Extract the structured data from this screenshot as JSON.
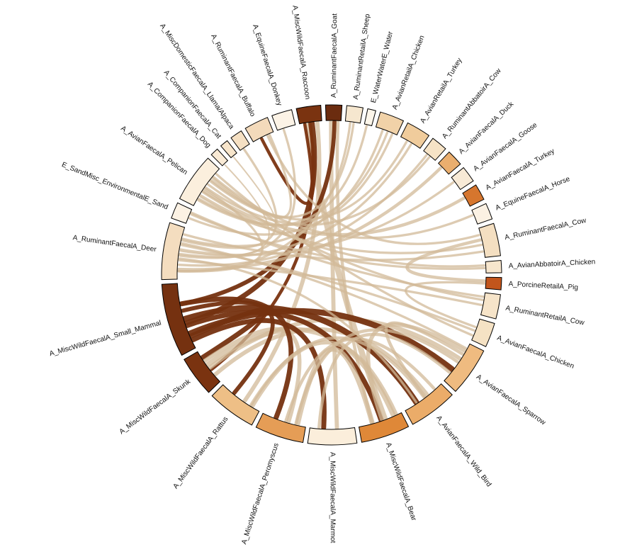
{
  "diagram": {
    "type": "chord",
    "groups": [
      {
        "id": "raccoon",
        "label": "A_MiscWildFaecalA_Raccoon",
        "color": "#7a3310",
        "weight": 3
      },
      {
        "id": "goat",
        "label": "A_RuminantFaecalA_Goat",
        "color": "#6b2c0f",
        "weight": 2
      },
      {
        "id": "sheep",
        "label": "A_RuminantRetailA_Sheep",
        "color": "#f6e7cf",
        "weight": 2
      },
      {
        "id": "water",
        "label": "E_WaterWaterE_Water",
        "color": "#fdf6ea",
        "weight": 1
      },
      {
        "id": "chk",
        "label": "A_AvianRetailA_Chicken",
        "color": "#f1d2a8",
        "weight": 3
      },
      {
        "id": "tky",
        "label": "A_AvianRetailA_Turkey",
        "color": "#f0cc9c",
        "weight": 3
      },
      {
        "id": "cow",
        "label": "A_RuminantAbbatoirA_Cow",
        "color": "#f6e3c6",
        "weight": 2
      },
      {
        "id": "duck",
        "label": "A_AvianFaecalA_Duck",
        "color": "#eaae6e",
        "weight": 2
      },
      {
        "id": "goose",
        "label": "A_AvianFaecalA_Goose",
        "color": "#f8ead6",
        "weight": 2
      },
      {
        "id": "turkeyf",
        "label": "A_AvianFaecalA_Turkey",
        "color": "#d6762e",
        "weight": 2
      },
      {
        "id": "horse",
        "label": "A_EquineFaecalA_Horse",
        "color": "#fbf1e3",
        "weight": 2
      },
      {
        "id": "cowf",
        "label": "A_RuminantFaecalA_Cow",
        "color": "#f4dfc1",
        "weight": 4
      },
      {
        "id": "abch",
        "label": "A_AvianAbbatoirA_Chicken",
        "color": "#f7e6cd",
        "weight": 1.5
      },
      {
        "id": "pig",
        "label": "A_PorcineRetailA_Pig",
        "color": "#c2551c",
        "weight": 1.5
      },
      {
        "id": "cowr",
        "label": "A_RuminantRetailA_Cow",
        "color": "#f6e4c9",
        "weight": 3
      },
      {
        "id": "chkf",
        "label": "A_AvianFaecalA_Chicken",
        "color": "#f5e2c4",
        "weight": 3
      },
      {
        "id": "sparrow",
        "label": "A_AvianFaecalA_Sparrow",
        "color": "#efbb80",
        "weight": 6
      },
      {
        "id": "wildbird",
        "label": "A_AvianFaecalA_Wild_Bird",
        "color": "#ebac69",
        "weight": 6
      },
      {
        "id": "bear",
        "label": "A_MiscWildFaecalA_Bear",
        "color": "#df8838",
        "weight": 6
      },
      {
        "id": "marmot",
        "label": "A_MiscWildFaecalA_Marmot",
        "color": "#fbeedb",
        "weight": 6
      },
      {
        "id": "pero",
        "label": "A_MiscWildFaecalA_Peromyscus",
        "color": "#e59d56",
        "weight": 6
      },
      {
        "id": "rattus",
        "label": "A_MiscWildFaecalA_Rattus",
        "color": "#eebf86",
        "weight": 6
      },
      {
        "id": "skunk",
        "label": "A_MiscWildFaecalA_Skunk",
        "color": "#7a3310",
        "weight": 5
      },
      {
        "id": "smallmam",
        "label": "A_MiscWildFaecalA_Small_Mammal",
        "color": "#753110",
        "weight": 9
      },
      {
        "id": "deer",
        "label": "A_RuminantFaecalA_Deer",
        "color": "#f4ddbf",
        "weight": 7
      },
      {
        "id": "sand",
        "label": "E_SandMisc_EnvironmentalE_Sand",
        "color": "#fcf2e4",
        "weight": 2
      },
      {
        "id": "pelican",
        "label": "A_AvianFaecalA_Pelican",
        "color": "#fbefdd",
        "weight": 6
      },
      {
        "id": "dog",
        "label": "A_CompanionFaecalA_Dog",
        "color": "#f9ead5",
        "weight": 1
      },
      {
        "id": "cat",
        "label": "A_CompanionFaecalA_Cat",
        "color": "#f7e5cb",
        "weight": 1
      },
      {
        "id": "llama",
        "label": "A_MiscDomesticFaecalA_Llama/Alpaca",
        "color": "#f5e0c3",
        "weight": 1.5
      },
      {
        "id": "buffalo",
        "label": "A_RuminantFaecalA_Buffalo",
        "color": "#f3dabb",
        "weight": 3
      },
      {
        "id": "donkey",
        "label": "A_EquineFaecalA_Donkey",
        "color": "#fcf3e6",
        "weight": 2.5
      }
    ],
    "links": [
      [
        "raccoon",
        "bear",
        6
      ],
      [
        "raccoon",
        "smallmam",
        5
      ],
      [
        "raccoon",
        "rattus",
        4
      ],
      [
        "raccoon",
        "buffalo",
        3
      ],
      [
        "raccoon",
        "skunk",
        3
      ],
      [
        "goat",
        "marmot",
        4
      ],
      [
        "goat",
        "smallmam",
        4
      ],
      [
        "goat",
        "bear",
        3
      ],
      [
        "skunk",
        "bear",
        5
      ],
      [
        "skunk",
        "smallmam",
        5
      ],
      [
        "skunk",
        "wildbird",
        4
      ],
      [
        "skunk",
        "sparrow",
        4
      ],
      [
        "skunk",
        "pero",
        4
      ],
      [
        "smallmam",
        "sparrow",
        6
      ],
      [
        "smallmam",
        "wildbird",
        6
      ],
      [
        "smallmam",
        "pero",
        5
      ],
      [
        "smallmam",
        "marmot",
        5
      ],
      [
        "smallmam",
        "bear",
        5
      ],
      [
        "smallmam",
        "rattus",
        4
      ],
      [
        "bear",
        "sparrow",
        4
      ],
      [
        "bear",
        "pero",
        5
      ],
      [
        "bear",
        "rattus",
        4
      ],
      [
        "pero",
        "sparrow",
        3
      ],
      [
        "pero",
        "wildbird",
        3
      ],
      [
        "rattus",
        "wildbird",
        3
      ],
      [
        "marmot",
        "sparrow",
        3
      ],
      [
        "wildbird",
        "sparrow",
        3
      ],
      [
        "wildbird",
        "deer",
        2
      ],
      [
        "sparrow",
        "deer",
        2
      ],
      [
        "duck",
        "deer",
        3
      ],
      [
        "turkeyf",
        "pelican",
        3
      ],
      [
        "pig",
        "cowf",
        3
      ],
      [
        "pig",
        "chkf",
        2
      ],
      [
        "tky",
        "pelican",
        2
      ],
      [
        "tky",
        "deer",
        2
      ],
      [
        "chk",
        "deer",
        2
      ],
      [
        "chk",
        "pelican",
        2
      ],
      [
        "chk",
        "sand",
        2
      ],
      [
        "cow",
        "deer",
        2
      ],
      [
        "cow",
        "pelican",
        2
      ],
      [
        "goose",
        "deer",
        2
      ],
      [
        "horse",
        "pelican",
        2
      ],
      [
        "cowf",
        "pelican",
        2
      ],
      [
        "cowf",
        "deer",
        2
      ],
      [
        "cowf",
        "buffalo",
        2
      ],
      [
        "cowr",
        "pelican",
        2
      ],
      [
        "cowr",
        "deer",
        2
      ],
      [
        "chkf",
        "deer",
        2
      ],
      [
        "chkf",
        "pelican",
        2
      ],
      [
        "abch",
        "pelican",
        2
      ],
      [
        "abch",
        "sand",
        2
      ],
      [
        "sheep",
        "deer",
        2
      ],
      [
        "sheep",
        "pelican",
        2
      ],
      [
        "water",
        "pelican",
        2
      ],
      [
        "donkey",
        "deer",
        2
      ],
      [
        "llama",
        "deer",
        2
      ],
      [
        "deer",
        "pelican",
        2
      ],
      [
        "sand",
        "cowr",
        2
      ],
      [
        "buffalo",
        "pelican",
        2
      ],
      [
        "dog",
        "deer",
        1
      ],
      [
        "cat",
        "pelican",
        1
      ]
    ]
  }
}
